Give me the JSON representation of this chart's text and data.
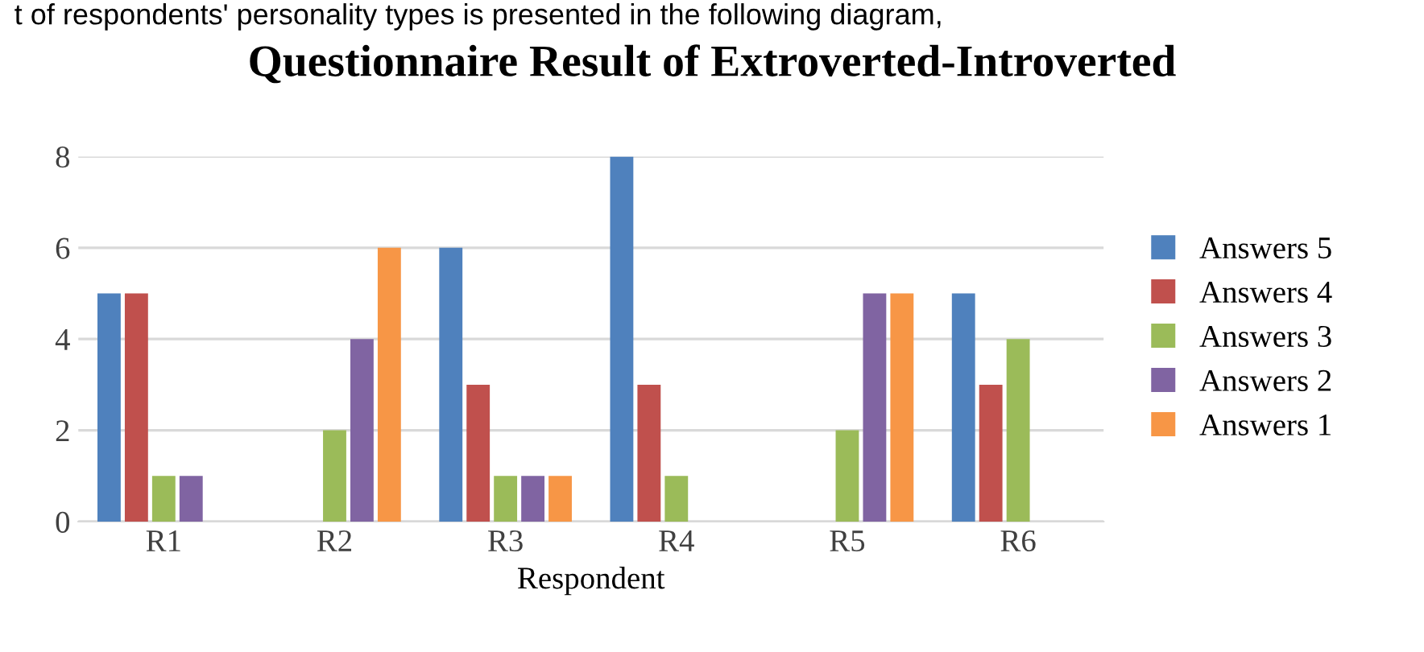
{
  "chart_data": {
    "type": "bar",
    "title": "Questionnaire Result of Extroverted-Introverted",
    "xlabel": "Respondent",
    "annotations": [
      "t of respondents' personality types is presented in the following diagram,"
    ],
    "categories": [
      "R1",
      "R2",
      "R3",
      "R4",
      "R5",
      "R6"
    ],
    "series": [
      {
        "name": "Answers 5",
        "color": "#4f81bd",
        "values": [
          5,
          0,
          6,
          8,
          0,
          5
        ]
      },
      {
        "name": "Answers 4",
        "color": "#c0504d",
        "values": [
          5,
          0,
          3,
          3,
          0,
          3
        ]
      },
      {
        "name": "Answers 3",
        "color": "#9bbb59",
        "values": [
          1,
          2,
          1,
          1,
          2,
          4
        ]
      },
      {
        "name": "Answers 2",
        "color": "#8064a2",
        "values": [
          1,
          4,
          1,
          0,
          5,
          0
        ]
      },
      {
        "name": "Answers 1",
        "color": "#f79646",
        "values": [
          0,
          6,
          1,
          0,
          5,
          0
        ]
      }
    ],
    "ylim": [
      0,
      8
    ],
    "yticks": [
      0,
      2,
      4,
      6,
      8
    ],
    "grid": "y",
    "legend": "right"
  }
}
